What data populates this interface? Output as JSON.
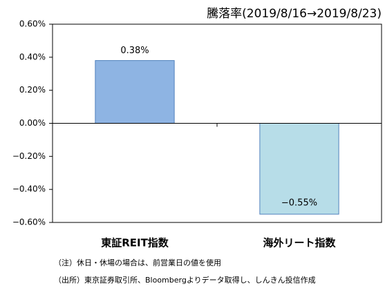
{
  "chart_data": {
    "type": "bar",
    "title": "騰落率(2019/8/16→2019/8/23)",
    "categories": [
      "東証REIT指数",
      "海外リート指数"
    ],
    "values": [
      0.38,
      -0.55
    ],
    "value_labels": [
      "0.38%",
      "−0.55%"
    ],
    "colors": [
      "#8eb4e3",
      "#b7dde8"
    ],
    "ylim": [
      -0.6,
      0.6
    ],
    "yticks": [
      {
        "value": 0.6,
        "label": "0.60%"
      },
      {
        "value": 0.4,
        "label": "0.40%"
      },
      {
        "value": 0.2,
        "label": "0.20%"
      },
      {
        "value": 0,
        "label": "0.00%"
      },
      {
        "value": -0.2,
        "label": "−0.20%"
      },
      {
        "value": -0.4,
        "label": "−0.40%"
      },
      {
        "value": -0.6,
        "label": "−0.60%"
      }
    ],
    "notes": [
      "（注）休日・休場の場合は、前営業日の値を使用",
      "（出所）東京証券取引所、Bloombergよりデータ取得し、しんきん投信作成"
    ]
  }
}
